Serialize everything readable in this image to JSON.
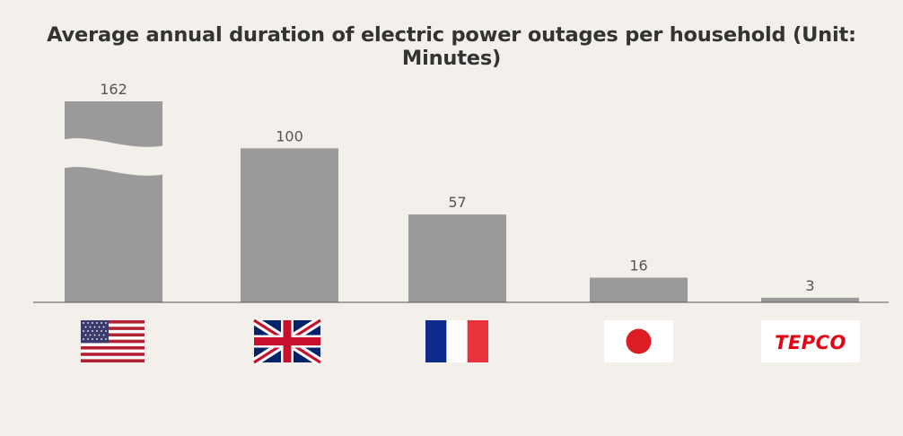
{
  "chart_data": {
    "type": "bar",
    "title": "Average annual duration of electric power outages per household (Unit: Minutes)",
    "xlabel": "",
    "ylabel": "",
    "categories": [
      "United States",
      "United Kingdom",
      "France",
      "Japan",
      "TEPCO"
    ],
    "values": [
      162,
      100,
      57,
      16,
      3
    ],
    "value_labels": [
      "162",
      "100",
      "57",
      "16",
      "3"
    ],
    "axis_break_on_category": "United States",
    "ylim": [
      0,
      120
    ],
    "grid": false,
    "legend": "none"
  },
  "category_logos": [
    {
      "category": "United States",
      "icon": "us-flag-icon"
    },
    {
      "category": "United Kingdom",
      "icon": "uk-flag-icon"
    },
    {
      "category": "France",
      "icon": "france-flag-icon"
    },
    {
      "category": "Japan",
      "icon": "japan-flag-icon"
    },
    {
      "category": "TEPCO",
      "icon": "tepco-logo-icon",
      "logo_text": "TEPCO"
    }
  ],
  "colors": {
    "background": "#f3efeb",
    "bar": "#9a9a9a",
    "value_label": "#555555",
    "title": "#333333",
    "axis": "#555555",
    "tepco_red": "#e60012"
  }
}
